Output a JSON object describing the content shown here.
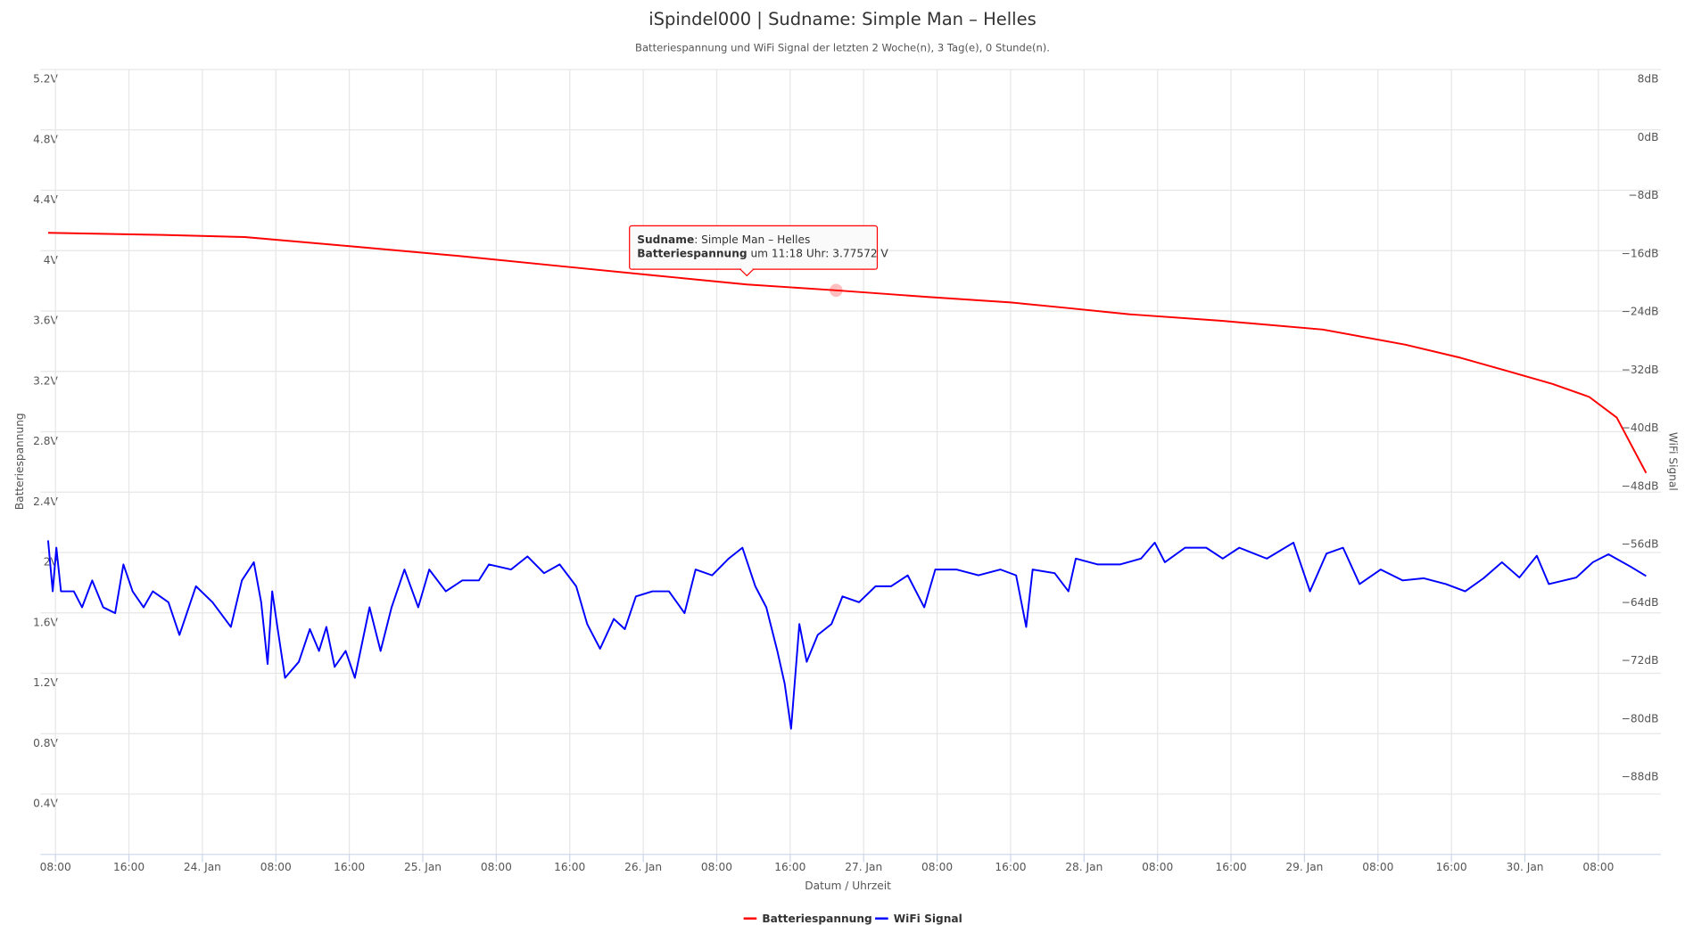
{
  "chart_data": {
    "type": "line",
    "title": "iSpindel000 | Sudname: Simple Man – Helles",
    "subtitle": "Batteriespannung und WiFi Signal der letzten 2 Woche(n), 3 Tag(e), 0 Stunde(n).",
    "xlabel": "Datum / Uhrzeit",
    "ylabel": "Batteriespannung",
    "y2label": "WiFi Signal",
    "xlim": [
      6.37,
      182.8
    ],
    "xticks": [
      {
        "value": 8,
        "label": "08:00"
      },
      {
        "value": 16,
        "label": "16:00"
      },
      {
        "value": 24,
        "label": "24. Jan"
      },
      {
        "value": 32,
        "label": "08:00"
      },
      {
        "value": 40,
        "label": "16:00"
      },
      {
        "value": 48,
        "label": "25. Jan"
      },
      {
        "value": 56,
        "label": "08:00"
      },
      {
        "value": 64,
        "label": "16:00"
      },
      {
        "value": 72,
        "label": "26. Jan"
      },
      {
        "value": 80,
        "label": "08:00"
      },
      {
        "value": 88,
        "label": "16:00"
      },
      {
        "value": 96,
        "label": "27. Jan"
      },
      {
        "value": 104,
        "label": "08:00"
      },
      {
        "value": 112,
        "label": "16:00"
      },
      {
        "value": 120,
        "label": "28. Jan"
      },
      {
        "value": 128,
        "label": "08:00"
      },
      {
        "value": 136,
        "label": "16:00"
      },
      {
        "value": 144,
        "label": "29. Jan"
      },
      {
        "value": 152,
        "label": "08:00"
      },
      {
        "value": 160,
        "label": "16:00"
      },
      {
        "value": 168,
        "label": "30. Jan"
      },
      {
        "value": 176,
        "label": "08:00"
      }
    ],
    "ylim": [
      0,
      5.2
    ],
    "yticks": [
      {
        "value": 0.4,
        "label": "0.4V"
      },
      {
        "value": 0.8,
        "label": "0.8V"
      },
      {
        "value": 1.2,
        "label": "1.2V"
      },
      {
        "value": 1.6,
        "label": "1.6V"
      },
      {
        "value": 2,
        "label": "2V"
      },
      {
        "value": 2.4,
        "label": "2.4V"
      },
      {
        "value": 2.8,
        "label": "2.8V"
      },
      {
        "value": 3.2,
        "label": "3.2V"
      },
      {
        "value": 3.6,
        "label": "3.6V"
      },
      {
        "value": 4,
        "label": "4V"
      },
      {
        "value": 4.4,
        "label": "4.4V"
      },
      {
        "value": 4.8,
        "label": "4.8V"
      },
      {
        "value": 5.2,
        "label": "5.2V"
      }
    ],
    "y2lim": [
      -100,
      8
    ],
    "y2ticks": [
      {
        "value": -88,
        "label": "−88dB"
      },
      {
        "value": -80,
        "label": "−80dB"
      },
      {
        "value": -72,
        "label": "−72dB"
      },
      {
        "value": -64,
        "label": "−64dB"
      },
      {
        "value": -56,
        "label": "−56dB"
      },
      {
        "value": -48,
        "label": "−48dB"
      },
      {
        "value": -40,
        "label": "−40dB"
      },
      {
        "value": -32,
        "label": "−32dB"
      },
      {
        "value": -24,
        "label": "−24dB"
      },
      {
        "value": -16,
        "label": "−16dB"
      },
      {
        "value": -8,
        "label": "−8dB"
      },
      {
        "value": 0,
        "label": "0dB"
      },
      {
        "value": 8,
        "label": "8dB"
      }
    ],
    "grid": true,
    "legend": "bottom",
    "series": [
      {
        "name": "Batteriespannung",
        "color": "#ff0000",
        "x": [
          7.2,
          19.7,
          28.6,
          39.9,
          51.7,
          63.5,
          73,
          83.3,
          93,
          103,
          112,
          118,
          125,
          135,
          146,
          155,
          161,
          166,
          171,
          175,
          178,
          181.2
        ],
        "values": [
          4.118,
          4.104,
          4.09,
          4.03,
          3.966,
          3.894,
          3.837,
          3.77572,
          3.737,
          3.693,
          3.657,
          3.621,
          3.578,
          3.535,
          3.477,
          3.377,
          3.29,
          3.204,
          3.117,
          3.031,
          2.894,
          2.527
        ]
      },
      {
        "name": "WiFi Signal",
        "color": "#0000ff",
        "axis": "y2",
        "x": [
          7.2,
          7.7,
          8.1,
          8.6,
          10,
          10.9,
          12,
          13.2,
          14.5,
          15.4,
          16.4,
          17.6,
          18.6,
          20.3,
          21.5,
          23.3,
          25.1,
          27.1,
          28.3,
          29.6,
          30.4,
          31.1,
          31.6,
          32.2,
          33,
          34.5,
          35.7,
          36.7,
          37.5,
          38.4,
          39.6,
          40.6,
          42.2,
          43.4,
          44.6,
          46,
          47.5,
          48.7,
          50.5,
          52.3,
          54.1,
          55.2,
          57.6,
          59.4,
          61.2,
          62.9,
          64.7,
          65.9,
          67.3,
          68.8,
          70,
          71.2,
          73,
          74.8,
          76.5,
          77.7,
          79.5,
          81.3,
          82.8,
          84.2,
          85.4,
          86.6,
          87.4,
          88.1,
          89,
          89.8,
          91,
          92.5,
          93.7,
          95.5,
          97.3,
          99,
          100.8,
          102.6,
          103.8,
          106.1,
          108.5,
          110.9,
          112.6,
          113.7,
          114.4,
          116.8,
          118.3,
          119.1,
          121.5,
          123.9,
          126.2,
          127.7,
          128.8,
          131,
          133.3,
          135.1,
          136.9,
          139.9,
          142.8,
          144.6,
          146.4,
          148.2,
          150,
          152.3,
          154.7,
          157,
          159.4,
          161.5,
          163.5,
          165.5,
          167.4,
          169.3,
          170.6,
          173.6,
          175.4,
          177.1,
          179.5,
          181.2
        ],
        "values": [
          -56.8,
          -63.8,
          -57.8,
          -63.8,
          -63.8,
          -66,
          -62.3,
          -66,
          -66.8,
          -60.1,
          -63.8,
          -66,
          -63.8,
          -65.3,
          -69.8,
          -63.1,
          -65.3,
          -68.7,
          -62.3,
          -59.8,
          -65.3,
          -73.8,
          -63.8,
          -69,
          -75.7,
          -73.5,
          -69,
          -72,
          -68.7,
          -74.2,
          -72,
          -75.7,
          -66,
          -72,
          -66,
          -60.8,
          -66,
          -60.8,
          -63.8,
          -62.3,
          -62.3,
          -60.1,
          -60.8,
          -59,
          -61.3,
          -60.1,
          -63.1,
          -68.3,
          -71.7,
          -67.6,
          -69,
          -64.5,
          -63.8,
          -63.8,
          -66.8,
          -60.8,
          -61.6,
          -59.3,
          -57.8,
          -63.1,
          -66,
          -72,
          -76.5,
          -82.7,
          -68.3,
          -73.5,
          -69.8,
          -68.3,
          -64.5,
          -65.3,
          -63.1,
          -63.1,
          -61.6,
          -66,
          -60.8,
          -60.8,
          -61.6,
          -60.8,
          -61.6,
          -68.7,
          -60.8,
          -61.3,
          -63.8,
          -59.3,
          -60.1,
          -60.1,
          -59.3,
          -57.1,
          -59.8,
          -57.8,
          -57.8,
          -59.3,
          -57.8,
          -59.3,
          -57.1,
          -63.8,
          -58.6,
          -57.8,
          -62.8,
          -60.8,
          -62.3,
          -62,
          -62.8,
          -63.8,
          -62,
          -59.8,
          -61.9,
          -58.9,
          -62.8,
          -61.9,
          -59.8,
          -58.7,
          -60.4,
          -61.7
        ]
      }
    ],
    "tooltip": {
      "lines": [
        {
          "bold": "Sudname",
          "text": ": Simple Man – Helles"
        },
        {
          "bold": "Batteriespannung",
          "text": " um 11:18 Uhr: 3.77572 V"
        }
      ]
    }
  }
}
